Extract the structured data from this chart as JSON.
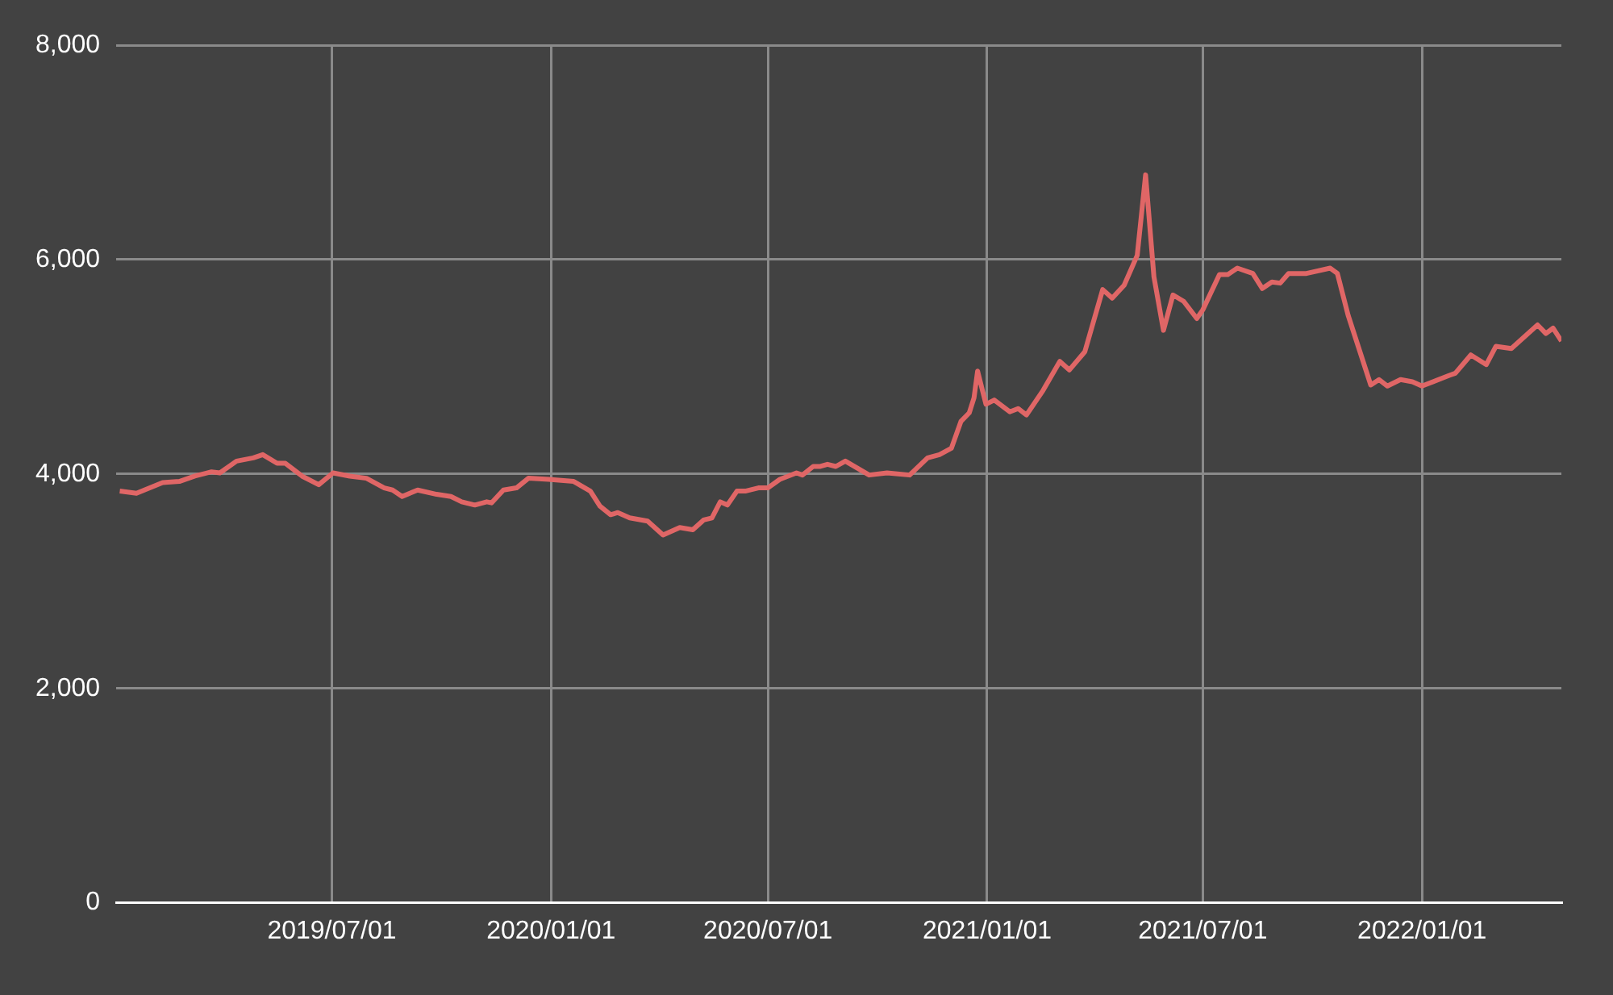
{
  "chart_data": {
    "type": "line",
    "xlim": [
      "2019-01-01",
      "2022-04-28"
    ],
    "xticks": [
      {
        "value": "2019-07-01",
        "label": "2019/07/01"
      },
      {
        "value": "2020-01-01",
        "label": "2020/01/01"
      },
      {
        "value": "2020-07-01",
        "label": "2020/07/01"
      },
      {
        "value": "2021-01-01",
        "label": "2021/01/01"
      },
      {
        "value": "2021-07-01",
        "label": "2021/07/01"
      },
      {
        "value": "2022-01-01",
        "label": "2022/01/01"
      }
    ],
    "ylim": [
      0,
      8000
    ],
    "yticks": [
      0,
      {
        "value": 2000,
        "label": "2,000"
      },
      {
        "value": 4000,
        "label": "4,000"
      },
      {
        "value": 6000,
        "label": "6,000"
      },
      {
        "value": 8000,
        "label": "8,000"
      }
    ],
    "grid": true,
    "legend": false,
    "marker": "none",
    "line_style": "solid",
    "series": [
      {
        "color": "#e06666",
        "x": [
          "2019-01-04",
          "2019-01-18",
          "2019-02-09",
          "2019-02-23",
          "2019-03-08",
          "2019-03-22",
          "2019-03-29",
          "2019-04-12",
          "2019-04-26",
          "2019-05-04",
          "2019-05-16",
          "2019-05-23",
          "2019-06-06",
          "2019-06-20",
          "2019-07-02",
          "2019-07-16",
          "2019-07-30",
          "2019-08-14",
          "2019-08-21",
          "2019-08-29",
          "2019-09-11",
          "2019-09-27",
          "2019-10-09",
          "2019-10-18",
          "2019-10-29",
          "2019-11-08",
          "2019-11-12",
          "2019-11-22",
          "2019-12-03",
          "2019-12-13",
          "2019-12-30",
          "2020-01-20",
          "2020-02-03",
          "2020-02-11",
          "2020-02-20",
          "2020-02-26",
          "2020-03-07",
          "2020-03-22",
          "2020-04-04",
          "2020-04-18",
          "2020-04-29",
          "2020-05-08",
          "2020-05-15",
          "2020-05-22",
          "2020-05-28",
          "2020-06-05",
          "2020-06-12",
          "2020-06-23",
          "2020-07-01",
          "2020-07-11",
          "2020-07-25",
          "2020-07-30",
          "2020-08-08",
          "2020-08-14",
          "2020-08-20",
          "2020-08-27",
          "2020-09-04",
          "2020-09-24",
          "2020-10-09",
          "2020-10-28",
          "2020-11-12",
          "2020-11-22",
          "2020-12-02",
          "2020-12-10",
          "2020-12-17",
          "2020-12-21",
          "2020-12-24",
          "2020-12-31",
          "2021-01-07",
          "2021-01-20",
          "2021-01-27",
          "2021-02-03",
          "2021-02-17",
          "2021-03-03",
          "2021-03-11",
          "2021-03-24",
          "2021-04-08",
          "2021-04-16",
          "2021-04-26",
          "2021-05-07",
          "2021-05-14",
          "2021-05-21",
          "2021-05-29",
          "2021-06-06",
          "2021-06-15",
          "2021-06-26",
          "2021-07-01",
          "2021-07-15",
          "2021-07-22",
          "2021-07-30",
          "2021-08-12",
          "2021-08-20",
          "2021-08-28",
          "2021-09-04",
          "2021-09-11",
          "2021-09-26",
          "2021-10-16",
          "2021-10-22",
          "2021-10-31",
          "2021-11-19",
          "2021-11-26",
          "2021-12-03",
          "2021-12-14",
          "2021-12-24",
          "2022-01-01",
          "2022-01-24",
          "2022-01-29",
          "2022-02-11",
          "2022-02-24",
          "2022-03-04",
          "2022-03-17",
          "2022-04-08",
          "2022-04-15",
          "2022-04-21",
          "2022-04-28"
        ],
        "values": [
          3840,
          3820,
          3920,
          3930,
          3980,
          4020,
          4010,
          4120,
          4150,
          4180,
          4100,
          4100,
          3980,
          3900,
          4010,
          3980,
          3960,
          3870,
          3850,
          3790,
          3850,
          3810,
          3790,
          3740,
          3710,
          3740,
          3730,
          3850,
          3870,
          3960,
          3950,
          3930,
          3840,
          3700,
          3620,
          3640,
          3590,
          3560,
          3430,
          3500,
          3480,
          3570,
          3590,
          3740,
          3710,
          3840,
          3840,
          3870,
          3870,
          3950,
          4010,
          3990,
          4070,
          4070,
          4090,
          4070,
          4120,
          3990,
          4010,
          3990,
          4150,
          4180,
          4240,
          4490,
          4570,
          4710,
          4960,
          4650,
          4690,
          4580,
          4610,
          4550,
          4780,
          5050,
          4970,
          5140,
          5720,
          5640,
          5760,
          6040,
          6790,
          5840,
          5340,
          5670,
          5610,
          5450,
          5530,
          5860,
          5860,
          5920,
          5870,
          5730,
          5790,
          5780,
          5870,
          5870,
          5920,
          5870,
          5480,
          4830,
          4880,
          4820,
          4880,
          4860,
          4820,
          4920,
          4940,
          5110,
          5020,
          5190,
          5170,
          5390,
          5310,
          5360,
          5240
        ]
      }
    ]
  }
}
